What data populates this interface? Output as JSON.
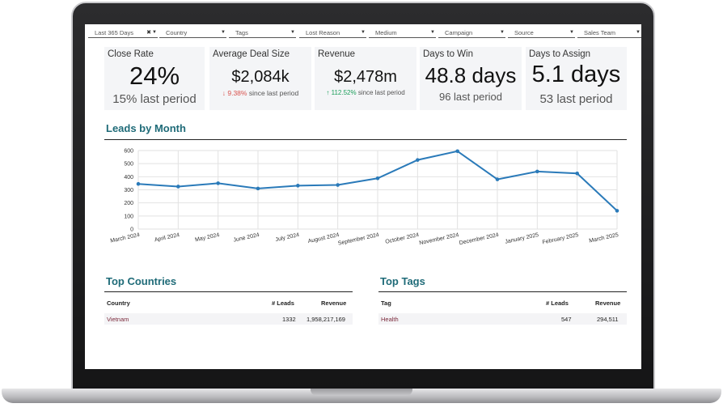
{
  "filters": [
    {
      "label": "Last 365 Days",
      "clear": "✖"
    },
    {
      "label": "Country"
    },
    {
      "label": "Tags"
    },
    {
      "label": "Lost Reason"
    },
    {
      "label": "Medium"
    },
    {
      "label": "Campaign"
    },
    {
      "label": "Source"
    },
    {
      "label": "Sales Team"
    }
  ],
  "kpis": {
    "close_rate": {
      "title": "Close Rate",
      "value": "24%",
      "sub": "15% last period"
    },
    "avg_deal": {
      "title": "Average Deal Size",
      "value": "$2,084k",
      "delta": "9.38%",
      "delta_suffix": "since last period",
      "delta_arrow": "↓"
    },
    "revenue": {
      "title": "Revenue",
      "value": "$2,478m",
      "delta": "112.52%",
      "delta_suffix": "since last period",
      "delta_arrow": "↑"
    },
    "days_to_win": {
      "title": "Days to Win",
      "value": "48.8 days",
      "sub": "96 last period"
    },
    "days_to_assign": {
      "title": "Days to Assign",
      "value": "5.1 days",
      "sub": "53 last period"
    }
  },
  "leads_by_month": {
    "title": "Leads by Month"
  },
  "chart_data": {
    "type": "line",
    "categories": [
      "March 2024",
      "April 2024",
      "May 2024",
      "June 2024",
      "July 2024",
      "August 2024",
      "September 2024",
      "October 2024",
      "November 2024",
      "December 2024",
      "January 2025",
      "February 2025",
      "March 2025"
    ],
    "series": [
      {
        "values": [
          345,
          325,
          350,
          310,
          332,
          337,
          388,
          528,
          595,
          380,
          440,
          425,
          140
        ]
      }
    ],
    "ylim": [
      0,
      600
    ],
    "yticks": [
      0,
      100,
      200,
      300,
      400,
      500,
      600
    ],
    "grid": true,
    "color": "#2a7ab9"
  },
  "top_countries": {
    "title": "Top Countries",
    "headers": [
      "Country",
      "# Leads",
      "Revenue"
    ],
    "rows": [
      [
        "Vietnam",
        "1332",
        "1,958,217,169"
      ]
    ]
  },
  "top_tags": {
    "title": "Top Tags",
    "headers": [
      "Tag",
      "# Leads",
      "Revenue"
    ],
    "rows": [
      [
        "Health",
        "547",
        "294,511"
      ]
    ]
  }
}
